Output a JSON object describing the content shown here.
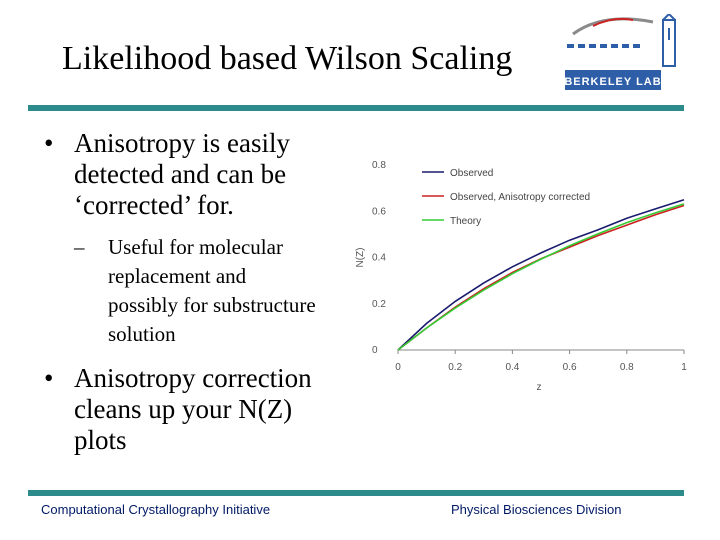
{
  "slide": {
    "title": "Likelihood based Wilson Scaling"
  },
  "logo": {
    "text": "BERKELEY LAB",
    "color": "#2e5ea8"
  },
  "bullets": {
    "b1": {
      "marker": "•",
      "lines": [
        "Anisotropy is easily",
        "detected and can be",
        "‘corrected’ for."
      ]
    },
    "b1_sub": {
      "marker": "–",
      "lines": [
        "Useful for molecular",
        "replacement and",
        "possibly for substructure",
        "solution"
      ]
    },
    "b2": {
      "marker": "•",
      "lines": [
        "Anisotropy correction",
        "cleans up your N(Z)",
        "plots"
      ]
    }
  },
  "footer": {
    "left": "Computational Crystallography Initiative",
    "right": "Physical Biosciences Division"
  },
  "colors": {
    "rule": "#2e8b8b",
    "footer_text": "#001a66"
  },
  "chart_data": {
    "type": "line",
    "xlabel": "z",
    "ylabel": "N(Z)",
    "xlim": [
      0,
      1
    ],
    "ylim": [
      0,
      0.8
    ],
    "x_ticks": [
      "0",
      "0.2",
      "0.4",
      "0.6",
      "0.8",
      "1"
    ],
    "y_ticks": [
      "0",
      "0.2",
      "0.4",
      "0.6",
      "0.8"
    ],
    "grid": false,
    "legend_position": "top-left",
    "x": [
      0,
      0.1,
      0.2,
      0.3,
      0.4,
      0.5,
      0.6,
      0.7,
      0.8,
      0.9,
      1.0
    ],
    "series": [
      {
        "name": "Observed",
        "color": "#1a1a6e",
        "values": [
          0,
          0.115,
          0.21,
          0.29,
          0.36,
          0.42,
          0.475,
          0.52,
          0.57,
          0.61,
          0.65
        ]
      },
      {
        "name": "Observed, Anisotropy corrected",
        "color": "#cc2222",
        "values": [
          0,
          0.095,
          0.185,
          0.265,
          0.335,
          0.395,
          0.445,
          0.495,
          0.54,
          0.585,
          0.625
        ]
      },
      {
        "name": "Theory",
        "color": "#33cc33",
        "values": [
          0,
          0.095,
          0.181,
          0.259,
          0.33,
          0.393,
          0.451,
          0.503,
          0.551,
          0.593,
          0.632
        ]
      }
    ]
  }
}
